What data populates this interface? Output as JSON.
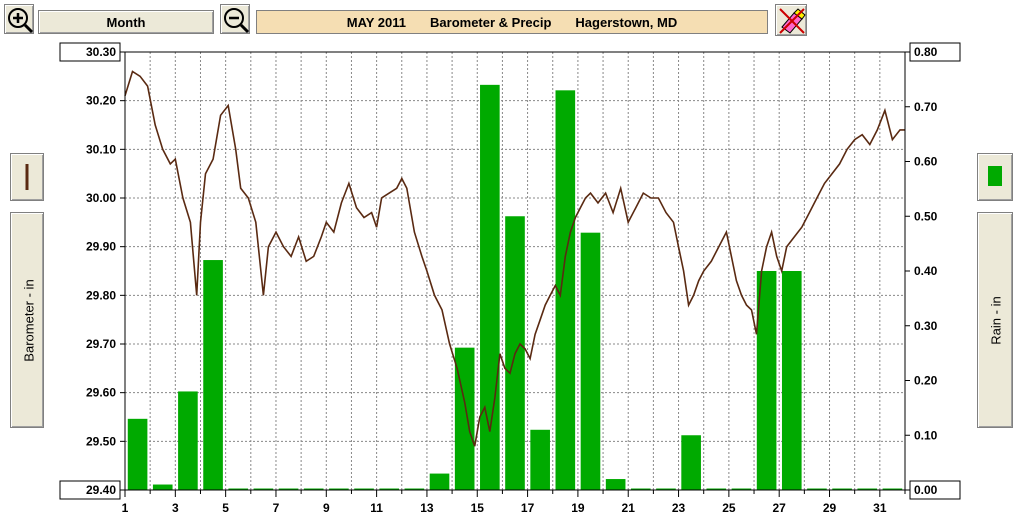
{
  "toolbar": {
    "zoom_in_icon": "zoom-in-icon",
    "zoom_out_icon": "zoom-out-icon",
    "range_label": "Month",
    "title_month": "MAY 2011",
    "title_chart": "Barometer & Precip",
    "title_location": "Hagerstown, MD",
    "erase_icon": "eraser-icon"
  },
  "left_panel": {
    "legend_icon": "brown-line-icon",
    "axis_title": "Barometer - in"
  },
  "right_panel": {
    "legend_icon": "green-bar-icon",
    "axis_title": "Rain - in"
  },
  "colors": {
    "line": "#5a2a12",
    "bar": "#00aa00",
    "grid": "#888888"
  },
  "chart_data": {
    "type": "bar+line",
    "x_tick_labels": [
      "1",
      "3",
      "5",
      "7",
      "9",
      "11",
      "13",
      "15",
      "17",
      "19",
      "21",
      "23",
      "25",
      "27",
      "29",
      "31"
    ],
    "x_range": [
      1,
      32
    ],
    "y_left": {
      "label": "Barometer - in",
      "range": [
        29.4,
        30.3
      ],
      "tick_labels": [
        "30.30",
        "30.20",
        "30.10",
        "30.00",
        "29.90",
        "29.80",
        "29.70",
        "29.60",
        "29.50",
        "29.40"
      ]
    },
    "y_right": {
      "label": "Rain - in",
      "range": [
        0.0,
        0.8
      ],
      "tick_labels": [
        "0.80",
        "0.70",
        "0.60",
        "0.50",
        "0.40",
        "0.30",
        "0.20",
        "0.10",
        "0.00"
      ]
    },
    "precip": {
      "days": [
        1,
        2,
        3,
        4,
        5,
        6,
        7,
        8,
        9,
        10,
        11,
        12,
        13,
        14,
        15,
        16,
        17,
        18,
        19,
        20,
        21,
        22,
        23,
        24,
        25,
        26,
        27,
        28,
        29,
        30,
        31
      ],
      "values": [
        0.13,
        0.01,
        0.18,
        0.42,
        0.0,
        0.0,
        0.0,
        0.0,
        0.0,
        0.0,
        0.0,
        0.0,
        0.03,
        0.26,
        0.74,
        0.5,
        0.11,
        0.73,
        0.47,
        0.02,
        0.0,
        0.0,
        0.1,
        0.0,
        0.0,
        0.4,
        0.4,
        0.0,
        0.0,
        0.0,
        0.0
      ]
    },
    "barometer": {
      "x": [
        1.0,
        1.3,
        1.6,
        1.9,
        2.2,
        2.5,
        2.8,
        3.0,
        3.3,
        3.6,
        3.85,
        4.0,
        4.2,
        4.5,
        4.8,
        5.1,
        5.4,
        5.6,
        5.9,
        6.2,
        6.5,
        6.7,
        7.0,
        7.3,
        7.6,
        7.9,
        8.2,
        8.5,
        8.8,
        9.0,
        9.3,
        9.6,
        9.9,
        10.2,
        10.5,
        10.8,
        11.0,
        11.2,
        11.5,
        11.8,
        12.0,
        12.2,
        12.5,
        12.8,
        13.0,
        13.3,
        13.6,
        13.9,
        14.2,
        14.5,
        14.7,
        14.9,
        15.1,
        15.3,
        15.5,
        15.7,
        15.9,
        16.1,
        16.3,
        16.5,
        16.7,
        16.9,
        17.1,
        17.3,
        17.5,
        17.7,
        17.9,
        18.1,
        18.3,
        18.5,
        18.7,
        18.9,
        19.1,
        19.3,
        19.5,
        19.8,
        20.1,
        20.4,
        20.7,
        21.0,
        21.3,
        21.6,
        21.9,
        22.2,
        22.5,
        22.8,
        23.0,
        23.2,
        23.4,
        23.6,
        23.8,
        24.0,
        24.3,
        24.6,
        24.9,
        25.1,
        25.3,
        25.5,
        25.7,
        25.9,
        26.1,
        26.3,
        26.5,
        26.7,
        26.9,
        27.1,
        27.3,
        27.6,
        27.9,
        28.2,
        28.5,
        28.8,
        29.1,
        29.4,
        29.7,
        30.0,
        30.3,
        30.6,
        30.9,
        31.2,
        31.5,
        31.8,
        32.0
      ],
      "y": [
        30.21,
        30.26,
        30.25,
        30.23,
        30.15,
        30.1,
        30.07,
        30.08,
        30.0,
        29.95,
        29.8,
        29.95,
        30.05,
        30.08,
        30.17,
        30.19,
        30.1,
        30.02,
        30.0,
        29.95,
        29.8,
        29.9,
        29.93,
        29.9,
        29.88,
        29.92,
        29.87,
        29.88,
        29.92,
        29.95,
        29.93,
        29.99,
        30.03,
        29.98,
        29.96,
        29.97,
        29.94,
        30.0,
        30.01,
        30.02,
        30.04,
        30.02,
        29.93,
        29.88,
        29.85,
        29.8,
        29.77,
        29.7,
        29.65,
        29.58,
        29.52,
        29.49,
        29.55,
        29.57,
        29.52,
        29.59,
        29.68,
        29.65,
        29.64,
        29.68,
        29.7,
        29.69,
        29.67,
        29.72,
        29.75,
        29.78,
        29.8,
        29.82,
        29.8,
        29.88,
        29.93,
        29.96,
        29.98,
        30.0,
        30.01,
        29.99,
        30.01,
        29.97,
        30.02,
        29.95,
        29.98,
        30.01,
        30.0,
        30.0,
        29.97,
        29.95,
        29.9,
        29.85,
        29.78,
        29.8,
        29.83,
        29.85,
        29.87,
        29.9,
        29.93,
        29.88,
        29.83,
        29.8,
        29.78,
        29.77,
        29.72,
        29.85,
        29.9,
        29.93,
        29.88,
        29.85,
        29.9,
        29.92,
        29.94,
        29.97,
        30.0,
        30.03,
        30.05,
        30.07,
        30.1,
        30.12,
        30.13,
        30.11,
        30.14,
        30.18,
        30.12,
        30.14,
        30.14
      ]
    }
  }
}
